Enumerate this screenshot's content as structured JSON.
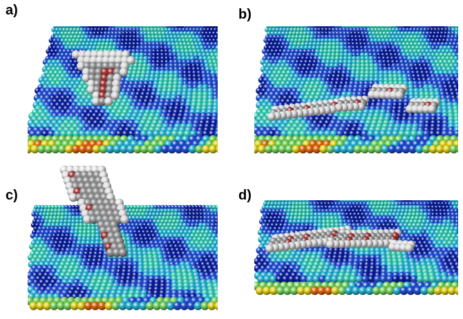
{
  "panels": [
    {
      "label": "a)",
      "molecule": "compact-cluster"
    },
    {
      "label": "b)",
      "molecule": "flat-spread-fragments"
    },
    {
      "label": "c)",
      "molecule": "upright-tall-cluster"
    },
    {
      "label": "d)",
      "molecule": "flat-adsorbed-layer"
    }
  ],
  "colors": {
    "surface_dark_blue": "#0a1fa0",
    "surface_blue": "#2350d8",
    "surface_cyan": "#2ab8d8",
    "surface_teal": "#3ad0b8",
    "surface_green": "#7ad860",
    "surface_yellow": "#e8d820",
    "surface_orange": "#e86a10",
    "atom_carbon": "#9a9a9a",
    "atom_hydrogen": "#e6e6e6",
    "atom_oxygen": "#a83838"
  }
}
